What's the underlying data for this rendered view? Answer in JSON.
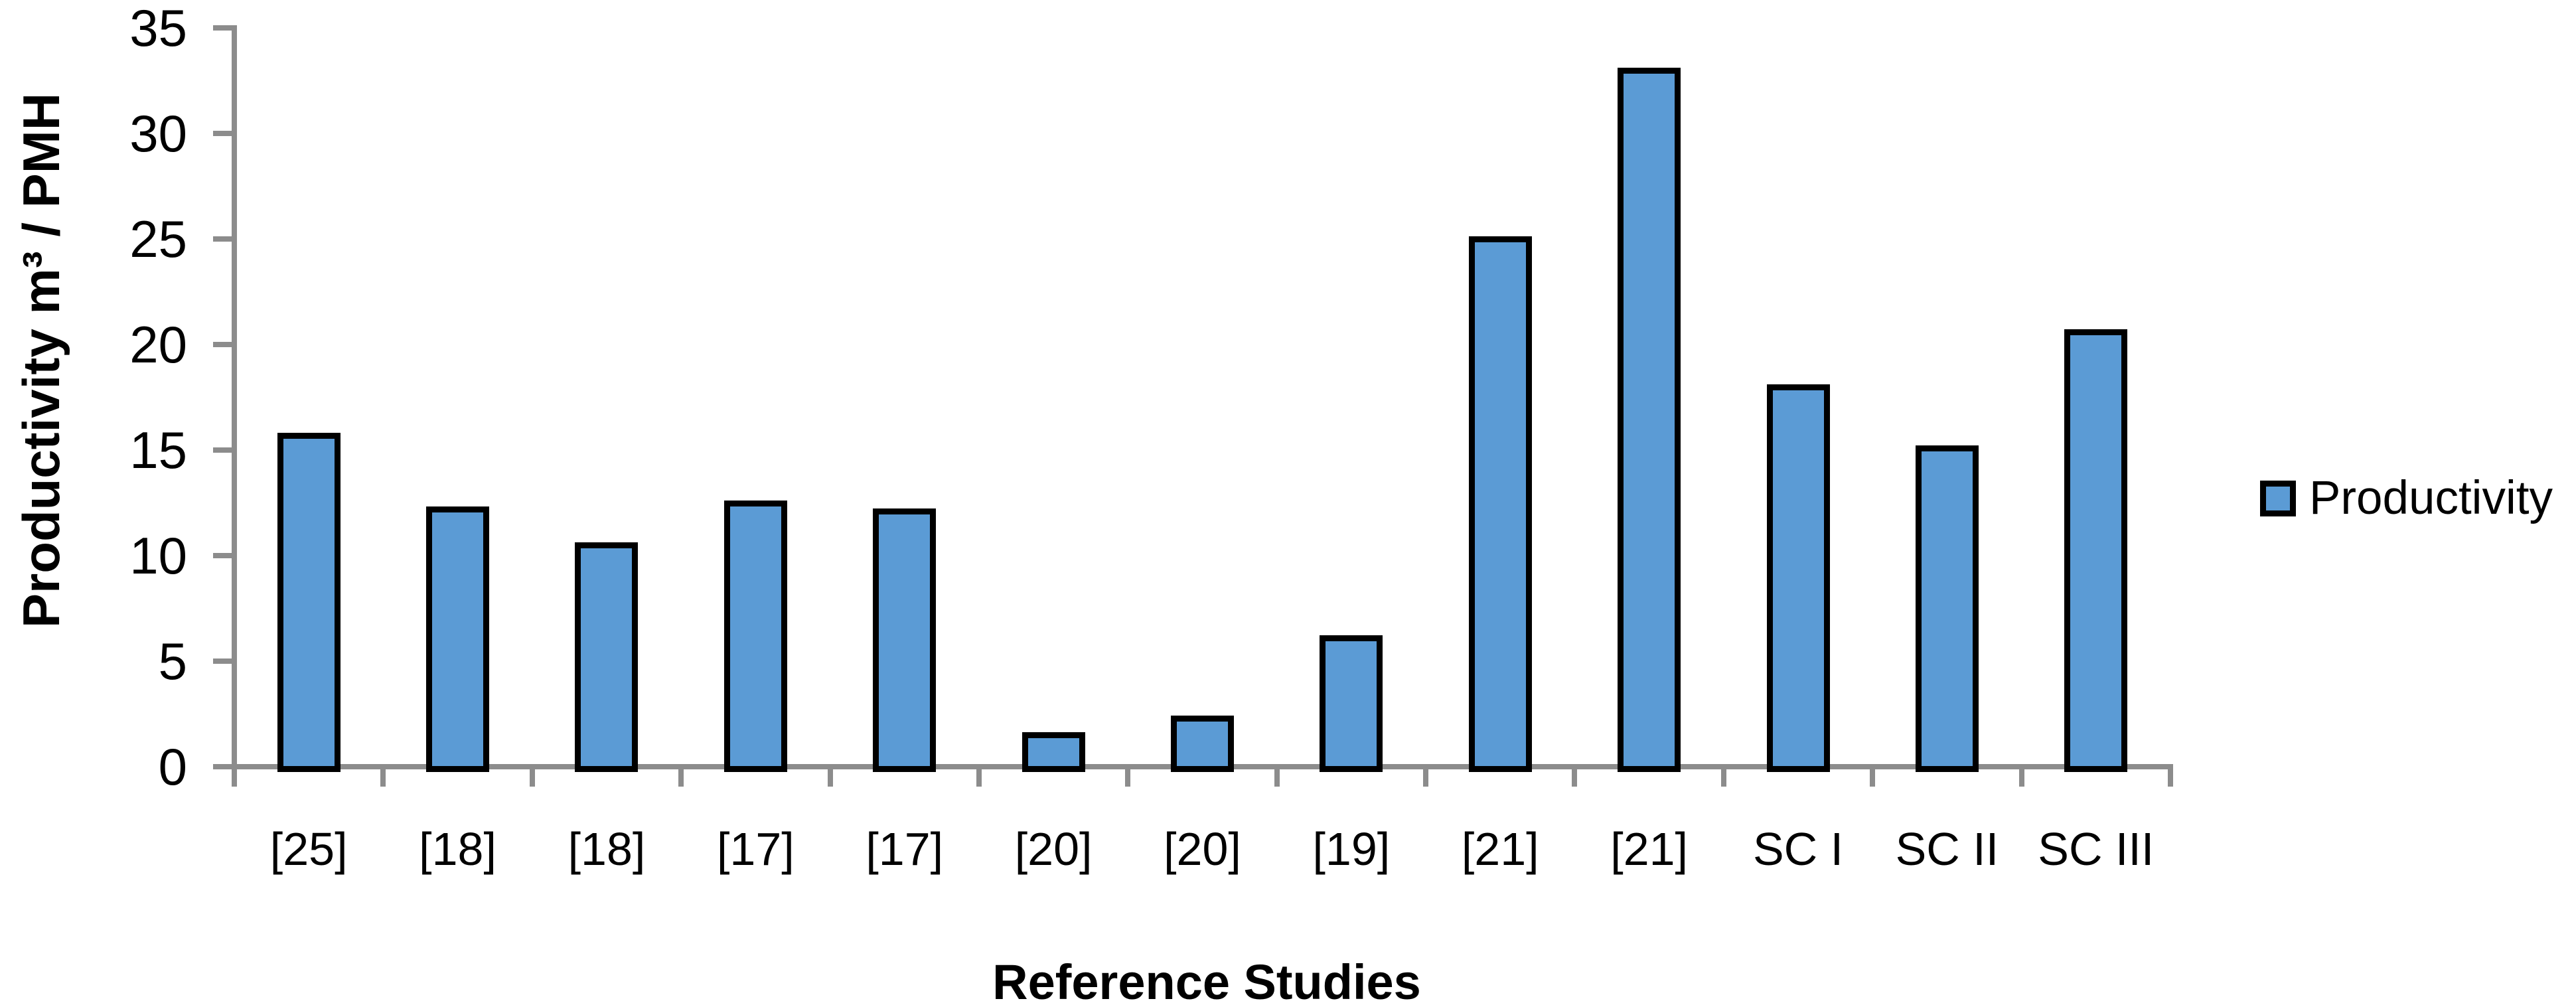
{
  "chart_data": {
    "type": "bar",
    "title": "",
    "categories": [
      "[25]",
      "[18]",
      "[18]",
      "[17]",
      "[17]",
      "[20]",
      "[20]",
      "[19]",
      "[21]",
      "[21]",
      "SC I",
      "SC II",
      "SC III"
    ],
    "values": [
      15.7,
      12.2,
      10.5,
      12.5,
      12.1,
      1.5,
      2.3,
      6.1,
      25,
      33,
      18,
      15.1,
      20.6
    ],
    "series_name": "Productivity",
    "xlabel": "Reference Studies",
    "ylabel": "Productivity m³ / PMH",
    "ylim": [
      0,
      35
    ],
    "ytick_step": 5,
    "y_ticks": [
      "0",
      "5",
      "10",
      "15",
      "20",
      "25",
      "30",
      "35"
    ],
    "grid": "off",
    "legend_position": "right",
    "colors": {
      "bar_fill": "#5B9BD5",
      "bar_border": "#000000",
      "axis_line": "#8C8C8C",
      "text": "#000000",
      "background": "#FFFFFF"
    }
  },
  "legend": {
    "label": "Productivity"
  },
  "axes": {
    "x_title": "Reference Studies",
    "y_title": "Productivity m³ / PMH"
  }
}
